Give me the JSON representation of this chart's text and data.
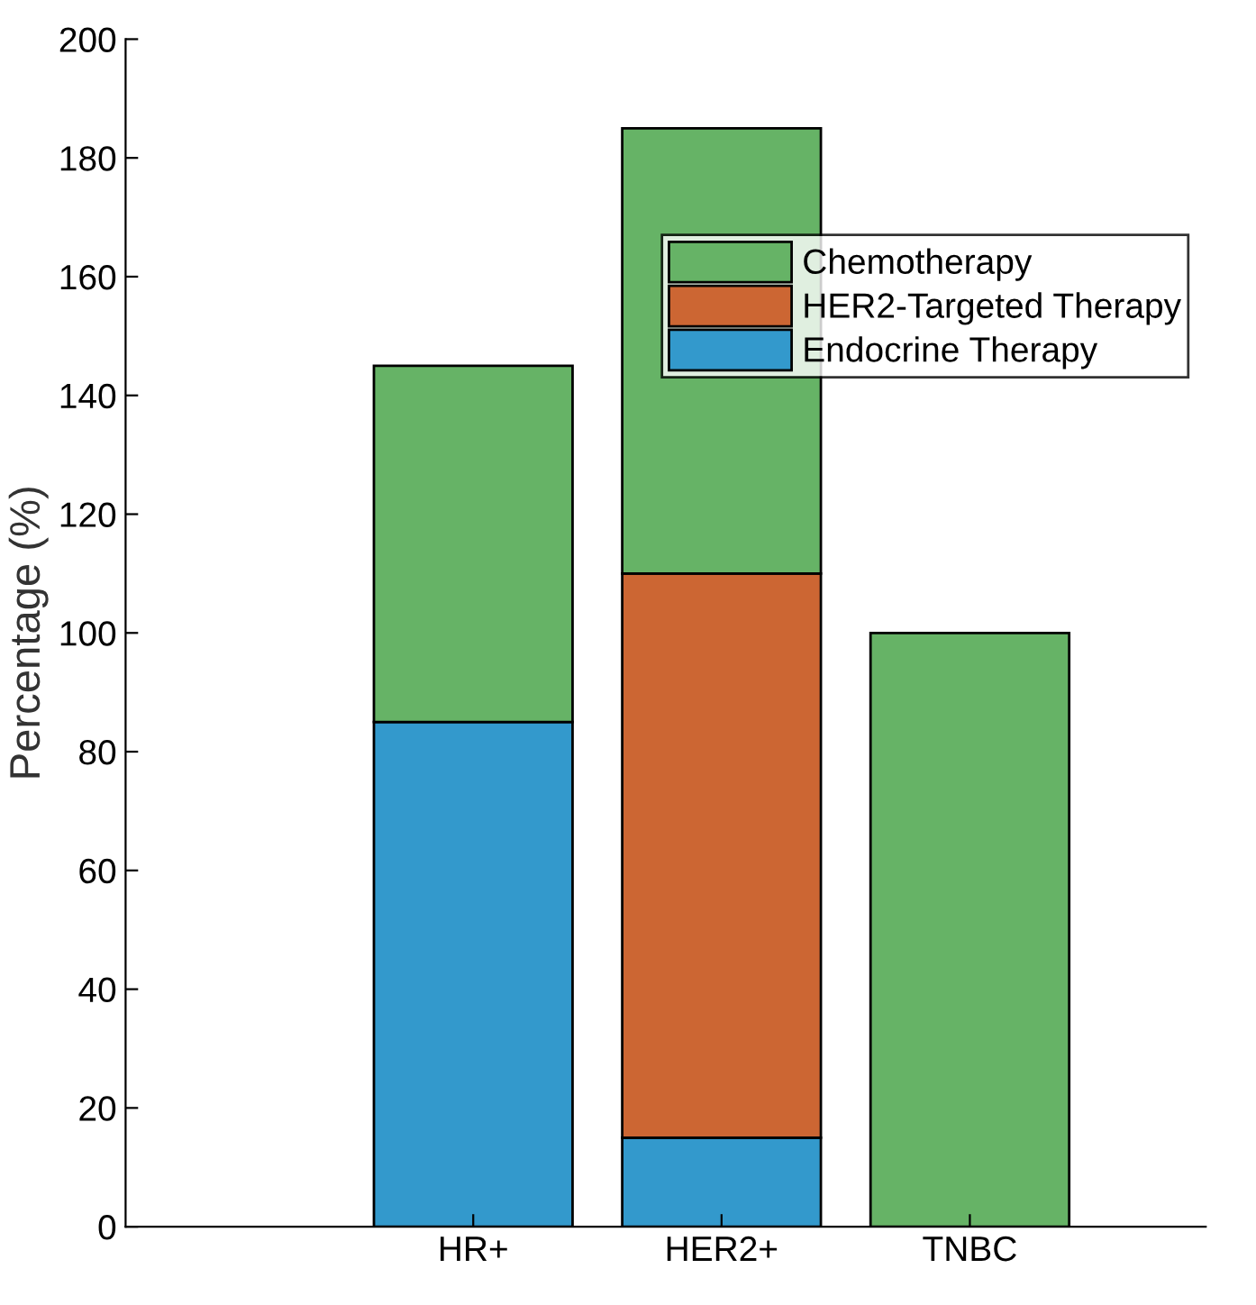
{
  "chart_data": {
    "type": "bar",
    "stacked": true,
    "ylabel": "Percentage (%)",
    "categories": [
      "HR+",
      "HER2+",
      "TNBC"
    ],
    "series": [
      {
        "name": "Endocrine Therapy",
        "color": "#3399cc",
        "values": [
          85,
          15,
          null
        ]
      },
      {
        "name": "HER2-Targeted Therapy",
        "color": "#cc6633",
        "values": [
          null,
          95,
          null
        ]
      },
      {
        "name": "Chemotherapy",
        "color": "#66b366",
        "values": [
          60,
          75,
          100
        ]
      }
    ],
    "ylim": [
      0,
      200
    ],
    "yticks": [
      0,
      20,
      40,
      60,
      80,
      100,
      120,
      140,
      160,
      180,
      200
    ],
    "grid": false,
    "legend": "top right"
  }
}
